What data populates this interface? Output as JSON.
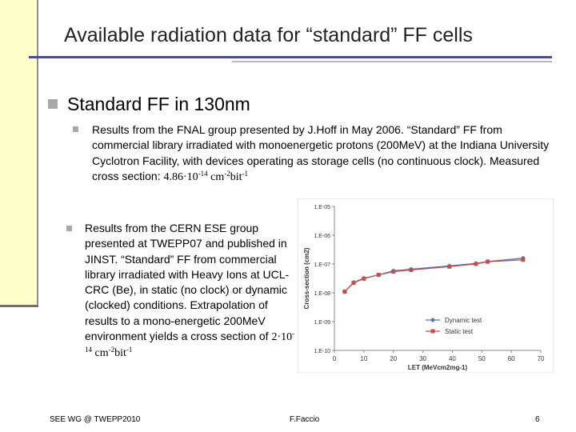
{
  "title": "Available radiation data for “standard” FF cells",
  "section": {
    "heading": "Standard FF in 130nm"
  },
  "bullets": [
    {
      "text": "Results from the FNAL group presented by J.Hoff in May 2006. “Standard” FF from commercial library irradiated with monoenergetic protons (200MeV) at the Indiana University Cyclotron Facility, with devices operating as storage cells (no continuous clock). Measured cross section: ",
      "value": "4.86·10",
      "value_exp": "-14",
      "unit": " cm",
      "unit_exp1": "-2",
      "unit_mid": "bit",
      "unit_exp2": "-1"
    },
    {
      "text": "Results from the CERN ESE group presented at TWEPP07 and published in JINST. “Standard” FF from commercial library irradiated with Heavy Ions at UCL-CRC (Be), in static (no clock) or dynamic (clocked) conditions. Extrapolation of results to a mono-energetic 200MeV environment yields a cross section of ",
      "value": "2·10",
      "value_exp": "-14",
      "unit": " cm",
      "unit_exp1": "-2",
      "unit_mid": "bit",
      "unit_exp2": "-1"
    }
  ],
  "footer": {
    "left": "SEE WG @ TWEPP2010",
    "center": "F.Faccio",
    "right": "6"
  },
  "chart_data": {
    "type": "line",
    "xlabel": "LET (MeVcm2mg-1)",
    "ylabel": "Cross-section (cm2)",
    "xlim": [
      0,
      70
    ],
    "x_ticks": [
      0,
      10,
      20,
      30,
      40,
      50,
      60,
      70
    ],
    "y_log": true,
    "ylim_exp": [
      -10,
      -5
    ],
    "y_tick_labels": [
      "1.E-10",
      "1.E-09",
      "1.E-08",
      "1.E-07",
      "1.E-06",
      "1.E-05"
    ],
    "grid": false,
    "legend_position": "bottom-right",
    "series": [
      {
        "name": "Dynamic test",
        "color": "#4f6fb0",
        "marker": "diamond",
        "x": [
          3.5,
          6.5,
          10,
          15,
          20,
          26,
          39,
          48,
          52,
          64
        ],
        "y": [
          1.1e-08,
          2.3e-08,
          3.2e-08,
          4.2e-08,
          5.8e-08,
          6.6e-08,
          8.6e-08,
          1.05e-07,
          1.22e-07,
          1.6e-07
        ]
      },
      {
        "name": "Static test",
        "color": "#c0504d",
        "marker": "square",
        "x": [
          3.5,
          6.5,
          10,
          15,
          20,
          26,
          39,
          48,
          52,
          64
        ],
        "y": [
          1.1e-08,
          2.2e-08,
          3.1e-08,
          4.2e-08,
          5.4e-08,
          6.2e-08,
          8.1e-08,
          1e-07,
          1.2e-07,
          1.4e-07
        ]
      }
    ]
  }
}
